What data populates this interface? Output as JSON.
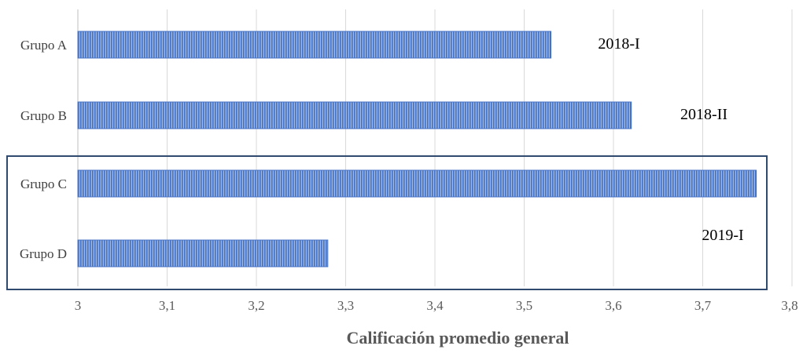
{
  "chart_data": {
    "type": "bar",
    "orientation": "horizontal",
    "categories": [
      "Grupo A",
      "Grupo B",
      "Grupo C",
      "Grupo D"
    ],
    "values": [
      3.53,
      3.62,
      3.76,
      3.28
    ],
    "title": "",
    "xlabel": "Calificación promedio general",
    "ylabel": "",
    "xlim": [
      3,
      3.8
    ],
    "x_ticks": [
      "3",
      "3,1",
      "3,2",
      "3,3",
      "3,4",
      "3,5",
      "3,6",
      "3,7",
      "3,8"
    ],
    "x_tick_values": [
      3,
      3.1,
      3.2,
      3.3,
      3.4,
      3.5,
      3.6,
      3.7,
      3.8
    ],
    "grid": "vertical",
    "bar_color": "#4472c4",
    "bar_pattern": "vertical-stripes",
    "annotations": [
      {
        "text": "2018-I",
        "category": "Grupo A"
      },
      {
        "text": "2018-II",
        "category": "Grupo B"
      },
      {
        "text": "2019-I",
        "category": "Grupo D"
      }
    ],
    "highlight_box": {
      "categories": [
        "Grupo C",
        "Grupo D"
      ],
      "color": "#2f4a6e"
    }
  }
}
